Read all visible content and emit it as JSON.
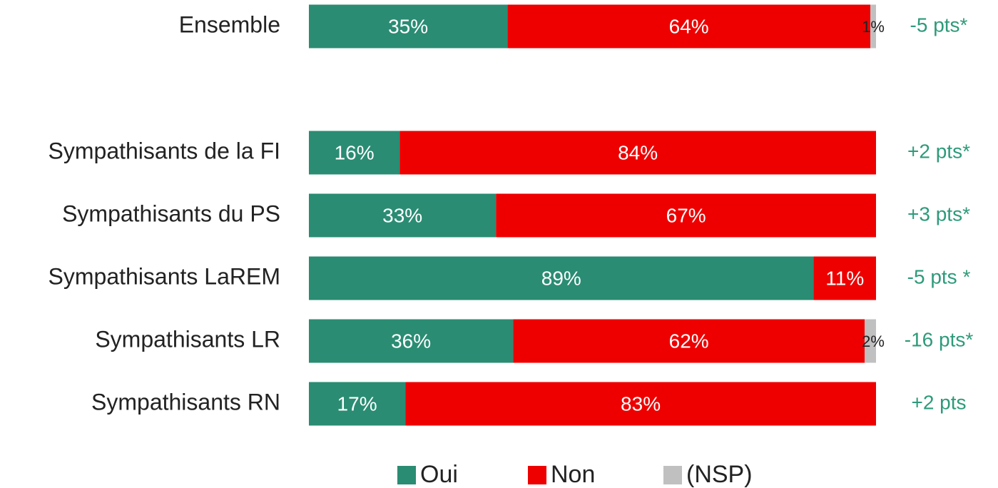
{
  "chart_data": {
    "type": "stacked-bar-horizontal",
    "categories": [
      "Ensemble",
      "Sympathisants de la FI",
      "Sympathisants du PS",
      "Sympathisants LaREM",
      "Sympathisants LR",
      "Sympathisants RN"
    ],
    "xlim": [
      0,
      100
    ],
    "series": [
      {
        "name": "Oui",
        "color": "#2a8c73",
        "values": [
          35,
          16,
          33,
          89,
          36,
          17
        ],
        "value_labels": [
          "35%",
          "16%",
          "33%",
          "89%",
          "36%",
          "17%"
        ]
      },
      {
        "name": "Non",
        "color": "#ee0000",
        "values": [
          64,
          84,
          67,
          11,
          62,
          83
        ],
        "value_labels": [
          "64%",
          "84%",
          "67%",
          "11%",
          "62%",
          "83%"
        ]
      },
      {
        "name": "(NSP)",
        "color": "#c0c0c0",
        "values": [
          1,
          null,
          null,
          null,
          2,
          null
        ],
        "value_labels": [
          "1%",
          null,
          null,
          null,
          "2%",
          null
        ]
      }
    ],
    "annotations": [
      "-5 pts*",
      "+2 pts*",
      "+3 pts*",
      "-5 pts *",
      "-16 pts*",
      "+2 pts"
    ],
    "annotation_color": "#2e9a7a",
    "legend": "bottom"
  }
}
